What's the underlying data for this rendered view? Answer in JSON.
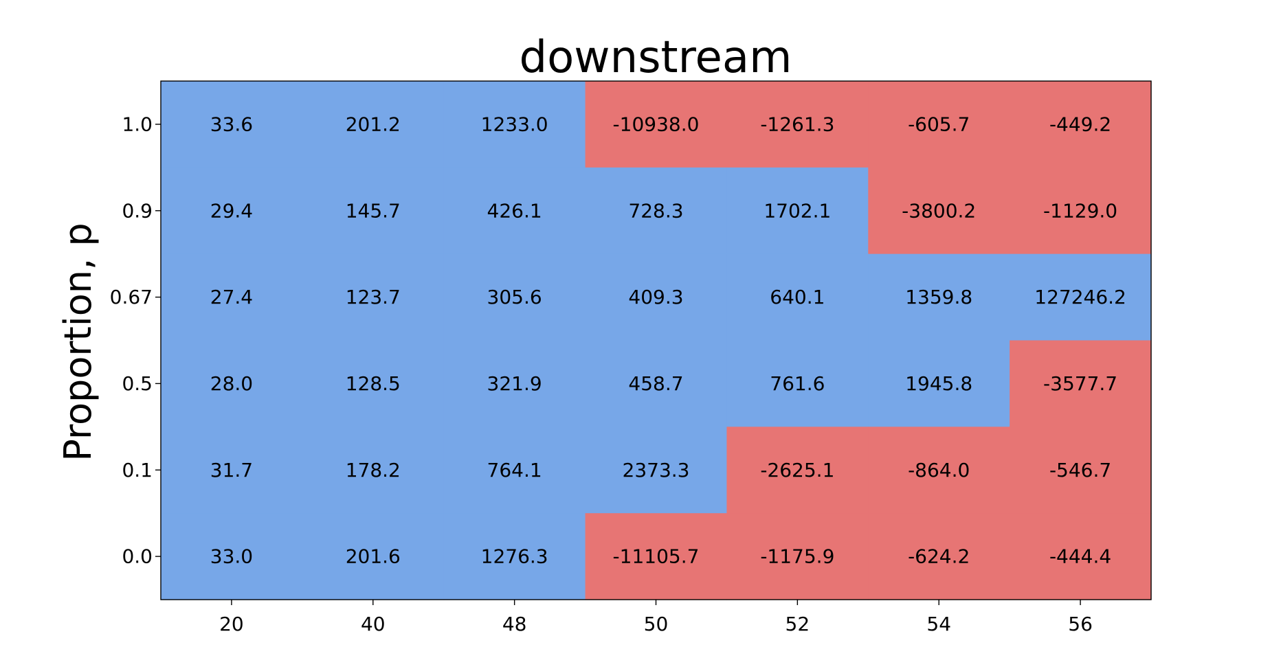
{
  "chart_data": {
    "type": "heatmap",
    "title": "downstream",
    "xlabel": "",
    "ylabel": "Proportion, p",
    "x_categories": [
      "20",
      "40",
      "48",
      "50",
      "52",
      "54",
      "56"
    ],
    "y_categories": [
      "1.0",
      "0.9",
      "0.67",
      "0.5",
      "0.1",
      "0.0"
    ],
    "values": [
      [
        "33.6",
        "201.2",
        "1233.0",
        "-10938.0",
        "-1261.3",
        "-605.7",
        "-449.2"
      ],
      [
        "29.4",
        "145.7",
        "426.1",
        "728.3",
        "1702.1",
        "-3800.2",
        "-1129.0"
      ],
      [
        "27.4",
        "123.7",
        "305.6",
        "409.3",
        "640.1",
        "1359.8",
        "127246.2"
      ],
      [
        "28.0",
        "128.5",
        "321.9",
        "458.7",
        "761.6",
        "1945.8",
        "-3577.7"
      ],
      [
        "31.7",
        "178.2",
        "764.1",
        "2373.3",
        "-2625.1",
        "-864.0",
        "-546.7"
      ],
      [
        "33.0",
        "201.6",
        "1276.3",
        "-11105.7",
        "-1175.9",
        "-624.2",
        "-444.4"
      ]
    ],
    "colors": {
      "positive": "#77a7e8",
      "negative": "#e77574"
    },
    "grid": false,
    "legend": "none"
  }
}
